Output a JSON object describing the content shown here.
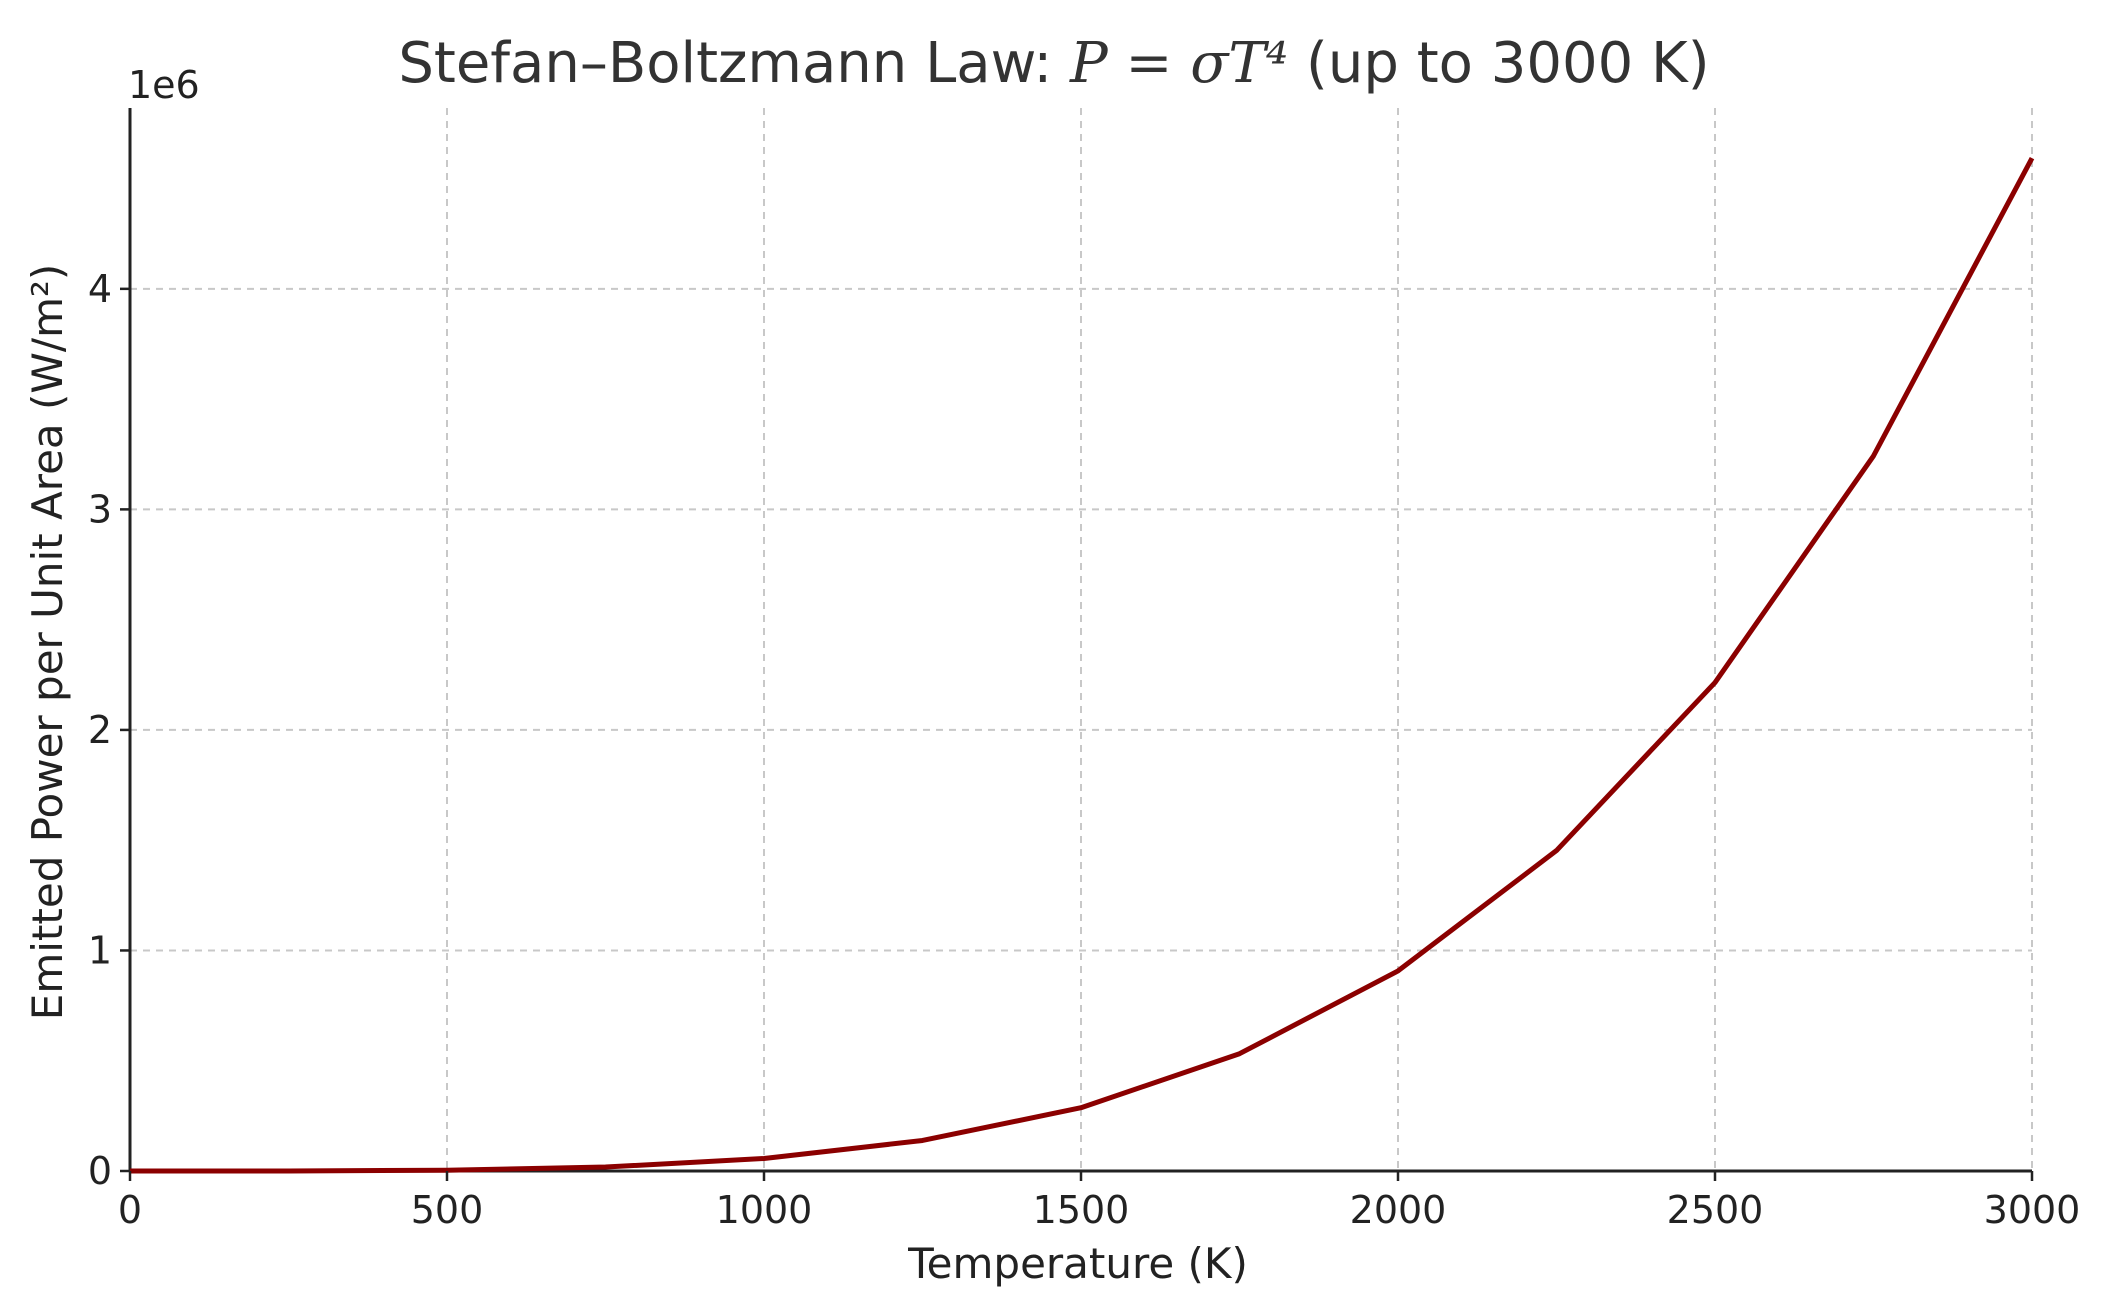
{
  "chart_data": {
    "type": "line",
    "title_prefix": "Stefan–Boltzmann Law: ",
    "title_math": "P = σT⁴",
    "title_suffix": " (up to 3000 K)",
    "xlabel": "Temperature (K)",
    "ylabel": "Emitted Power per Unit Area (W/m²)",
    "y_offset_label": "1e6",
    "xlim": [
      0,
      3000
    ],
    "ylim": [
      0,
      4.82
    ],
    "x_ticks": [
      0,
      500,
      1000,
      1500,
      2000,
      2500,
      3000
    ],
    "x_tick_labels": [
      "0",
      "500",
      "1000",
      "1500",
      "2000",
      "2500",
      "3000"
    ],
    "y_ticks": [
      0,
      1,
      2,
      3,
      4
    ],
    "y_tick_labels": [
      "0",
      "1",
      "2",
      "3",
      "4"
    ],
    "grid": true,
    "series": [
      {
        "color": "#8b0000",
        "x": [
          0,
          250,
          500,
          750,
          1000,
          1250,
          1500,
          1750,
          2000,
          2250,
          2500,
          2750,
          3000
        ],
        "y": [
          0,
          0.0002,
          0.0035,
          0.0179,
          0.0567,
          0.1384,
          0.287,
          0.5318,
          0.9072,
          1.4531,
          2.2148,
          3.2426,
          4.5927
        ]
      }
    ]
  }
}
